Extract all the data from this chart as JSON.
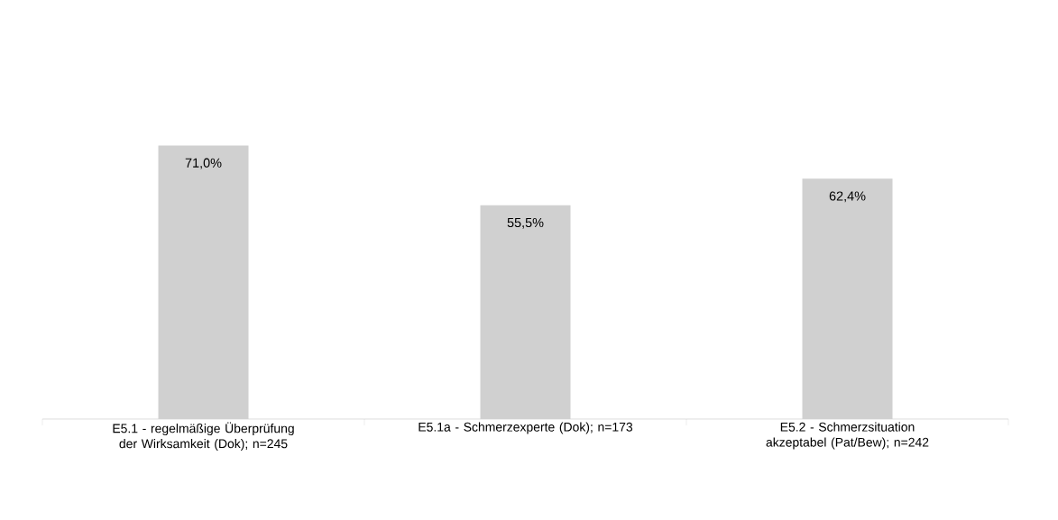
{
  "chart_data": {
    "type": "bar",
    "categories": [
      "E5.1 - regelmäßige Überprüfung der Wirksamkeit (Dok); n=245",
      "E5.1a - Schmerzexperte (Dok); n=173",
      "E5.2 - Schmerzsituation akzeptabel (Pat/Bew); n=242"
    ],
    "values": [
      71.0,
      55.5,
      62.4
    ],
    "value_labels": [
      "71,0%",
      "55,5%",
      "62,4%"
    ],
    "color": "#d0d0d0"
  }
}
